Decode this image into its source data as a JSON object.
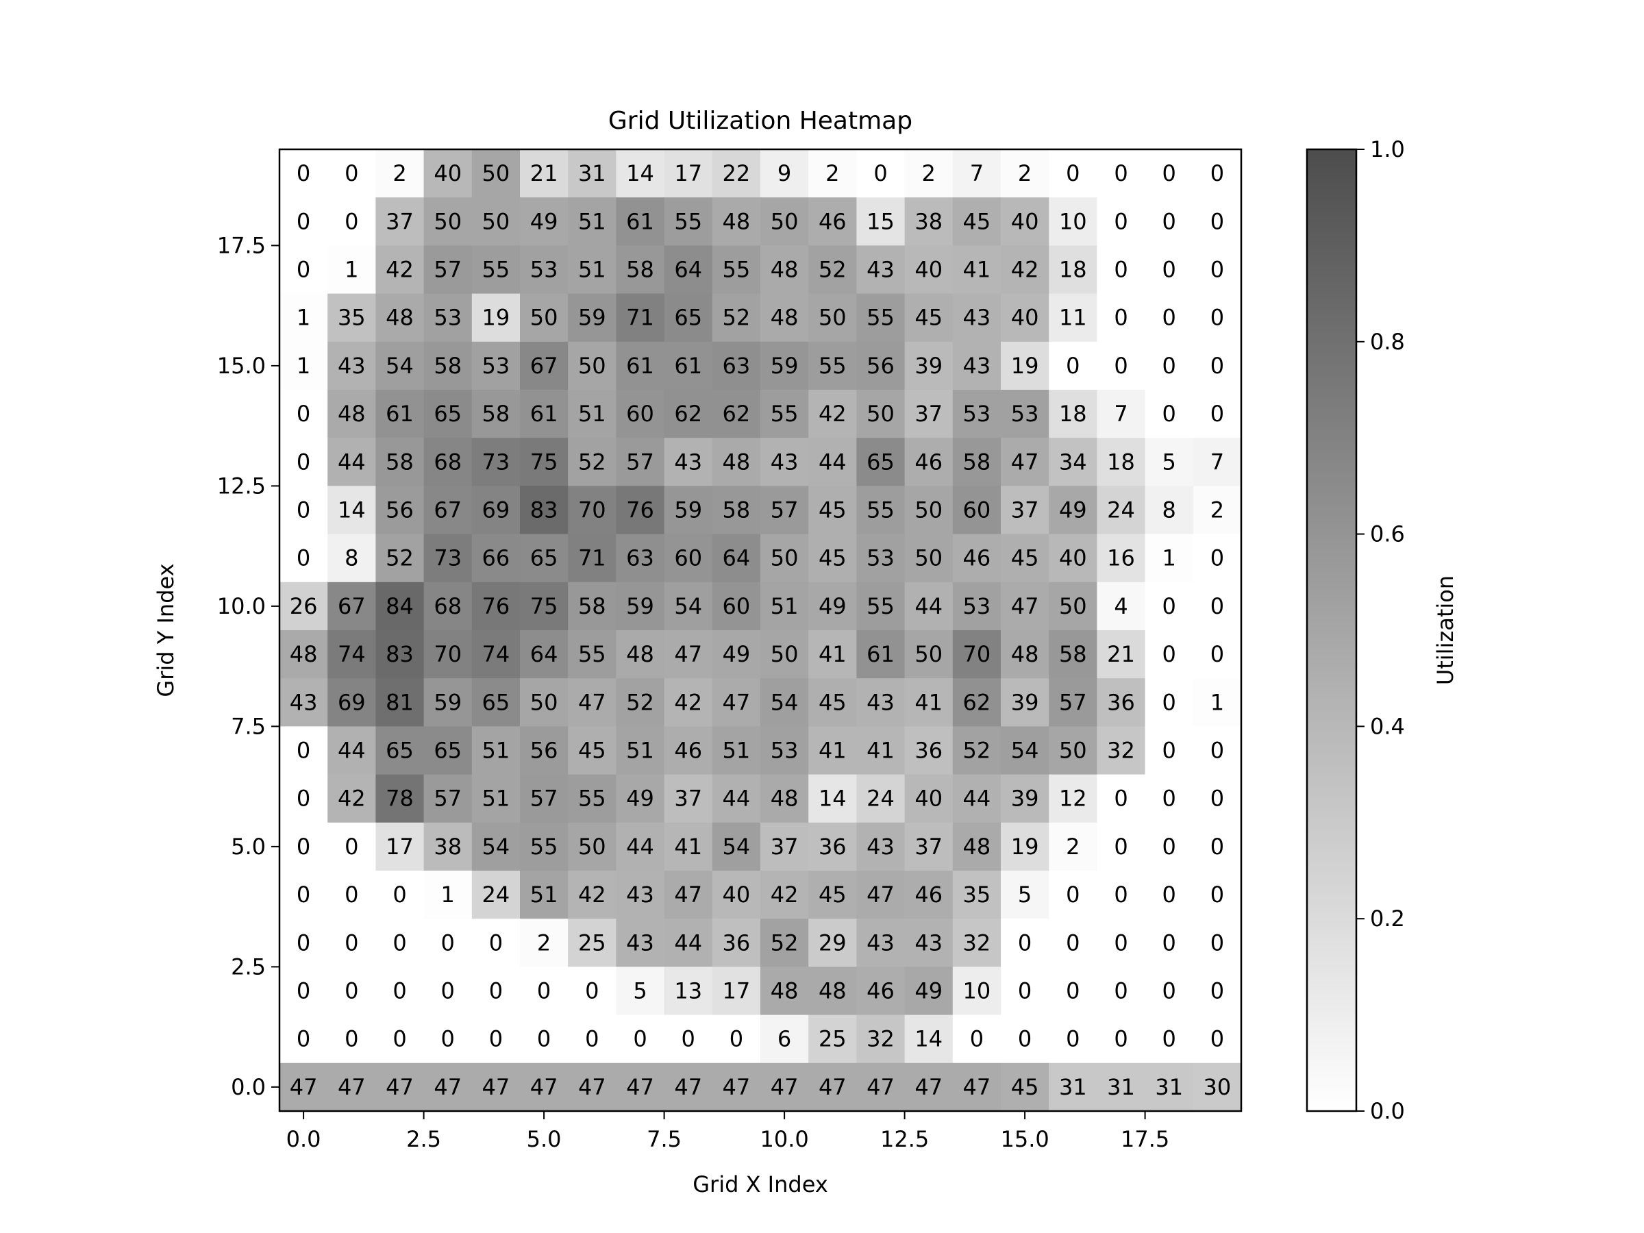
{
  "chart_data": {
    "type": "heatmap",
    "title": "Grid Utilization Heatmap",
    "xlabel": "Grid X Index",
    "ylabel": "Grid Y Index",
    "colorbar_label": "Utilization",
    "colormap": "gray_r (white to dark gray)",
    "origin": "lower",
    "xlim": [
      -0.5,
      19.5
    ],
    "ylim": [
      -0.5,
      19.5
    ],
    "x_ticks": [
      "0.0",
      "2.5",
      "5.0",
      "7.5",
      "10.0",
      "12.5",
      "15.0",
      "17.5"
    ],
    "y_ticks": [
      "0.0",
      "2.5",
      "5.0",
      "7.5",
      "10.0",
      "12.5",
      "15.0",
      "17.5"
    ],
    "colorbar_ticks": [
      "0.0",
      "0.2",
      "0.4",
      "0.6",
      "0.8",
      "1.0"
    ],
    "colorbar_range": [
      0.0,
      1.0
    ],
    "rows_top_to_bottom": [
      [
        0,
        0,
        2,
        40,
        50,
        21,
        31,
        14,
        17,
        22,
        9,
        2,
        0,
        2,
        7,
        2,
        0,
        0,
        0,
        0
      ],
      [
        0,
        0,
        37,
        50,
        50,
        49,
        51,
        61,
        55,
        48,
        50,
        46,
        15,
        38,
        45,
        40,
        10,
        0,
        0,
        0
      ],
      [
        0,
        1,
        42,
        57,
        55,
        53,
        51,
        58,
        64,
        55,
        48,
        52,
        43,
        40,
        41,
        42,
        18,
        0,
        0,
        0
      ],
      [
        1,
        35,
        48,
        53,
        19,
        50,
        59,
        71,
        65,
        52,
        48,
        50,
        55,
        45,
        43,
        40,
        11,
        0,
        0,
        0
      ],
      [
        1,
        43,
        54,
        58,
        53,
        67,
        50,
        61,
        61,
        63,
        59,
        55,
        56,
        39,
        43,
        19,
        0,
        0,
        0,
        0
      ],
      [
        0,
        48,
        61,
        65,
        58,
        61,
        51,
        60,
        62,
        62,
        55,
        42,
        50,
        37,
        53,
        53,
        18,
        7,
        0,
        0
      ],
      [
        0,
        44,
        58,
        68,
        73,
        75,
        52,
        57,
        43,
        48,
        43,
        44,
        65,
        46,
        58,
        47,
        34,
        18,
        5,
        7
      ],
      [
        0,
        14,
        56,
        67,
        69,
        83,
        70,
        76,
        59,
        58,
        57,
        45,
        55,
        50,
        60,
        37,
        49,
        24,
        8,
        2
      ],
      [
        0,
        8,
        52,
        73,
        66,
        65,
        71,
        63,
        60,
        64,
        50,
        45,
        53,
        50,
        46,
        45,
        40,
        16,
        1,
        0
      ],
      [
        26,
        67,
        84,
        68,
        76,
        75,
        58,
        59,
        54,
        60,
        51,
        49,
        55,
        44,
        53,
        47,
        50,
        4,
        0,
        0
      ],
      [
        48,
        74,
        83,
        70,
        74,
        64,
        55,
        48,
        47,
        49,
        50,
        41,
        61,
        50,
        70,
        48,
        58,
        21,
        0,
        0
      ],
      [
        43,
        69,
        81,
        59,
        65,
        50,
        47,
        52,
        42,
        47,
        54,
        45,
        43,
        41,
        62,
        39,
        57,
        36,
        0,
        1
      ],
      [
        0,
        44,
        65,
        65,
        51,
        56,
        45,
        51,
        46,
        51,
        53,
        41,
        41,
        36,
        52,
        54,
        50,
        32,
        0,
        0
      ],
      [
        0,
        42,
        78,
        57,
        51,
        57,
        55,
        49,
        37,
        44,
        48,
        14,
        24,
        40,
        44,
        39,
        12,
        0,
        0,
        0
      ],
      [
        0,
        0,
        17,
        38,
        54,
        55,
        50,
        44,
        41,
        54,
        37,
        36,
        43,
        37,
        48,
        19,
        2,
        0,
        0,
        0
      ],
      [
        0,
        0,
        0,
        1,
        24,
        51,
        42,
        43,
        47,
        40,
        42,
        45,
        47,
        46,
        35,
        5,
        0,
        0,
        0,
        0
      ],
      [
        0,
        0,
        0,
        0,
        0,
        2,
        25,
        43,
        44,
        36,
        52,
        29,
        43,
        43,
        32,
        0,
        0,
        0,
        0,
        0
      ],
      [
        0,
        0,
        0,
        0,
        0,
        0,
        0,
        5,
        13,
        17,
        48,
        48,
        46,
        49,
        10,
        0,
        0,
        0,
        0,
        0
      ],
      [
        0,
        0,
        0,
        0,
        0,
        0,
        0,
        0,
        0,
        0,
        6,
        25,
        32,
        14,
        0,
        0,
        0,
        0,
        0,
        0
      ],
      [
        47,
        47,
        47,
        47,
        47,
        47,
        47,
        47,
        47,
        47,
        47,
        47,
        47,
        47,
        47,
        45,
        31,
        31,
        31,
        30
      ]
    ]
  }
}
